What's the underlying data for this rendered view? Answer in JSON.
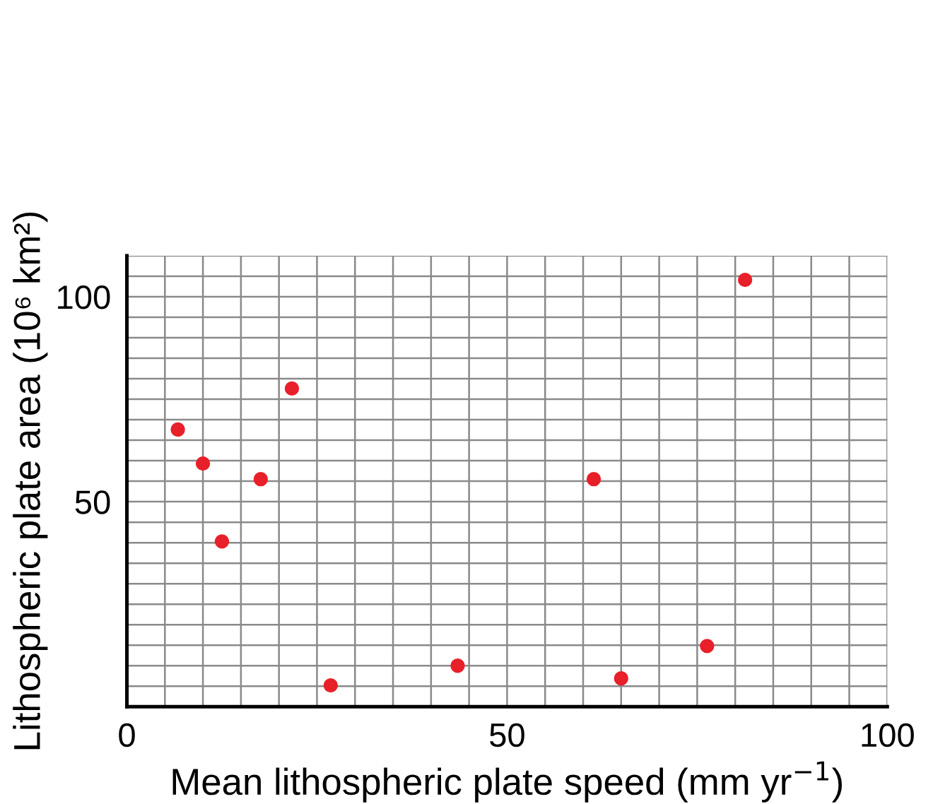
{
  "chart_data": {
    "type": "scatter",
    "xlabel": "Mean lithospheric plate speed (mm yr$^{−1}$)",
    "ylabel": "Lithospheric plate area (10⁶ km²)",
    "x": [
      6.7,
      10.0,
      12.5,
      17.6,
      21.7,
      26.8,
      43.5,
      61.4,
      65.0,
      76.3,
      81.3
    ],
    "series": [
      {
        "color": "#e8202a",
        "values": [
          67.6,
          59.3,
          40.3,
          55.5,
          77.6,
          5.2,
          10.0,
          55.5,
          6.9,
          14.8,
          104.1
        ]
      }
    ],
    "marker": "circle",
    "grid": true,
    "legend": false,
    "xlim": [
      0,
      100
    ],
    "ylim": [
      0,
      110
    ],
    "xticks": [
      0,
      {
        "value": 5,
        "label": null
      },
      {
        "value": 10,
        "label": null
      },
      {
        "value": 15,
        "label": null
      },
      {
        "value": 20,
        "label": null
      },
      {
        "value": 25,
        "label": null
      },
      {
        "value": 30,
        "label": null
      },
      {
        "value": 35,
        "label": null
      },
      {
        "value": 40,
        "label": null
      },
      {
        "value": 45,
        "label": null
      },
      50,
      {
        "value": 55,
        "label": null
      },
      {
        "value": 60,
        "label": null
      },
      {
        "value": 65,
        "label": null
      },
      {
        "value": 70,
        "label": null
      },
      {
        "value": 75,
        "label": null
      },
      {
        "value": 80,
        "label": null
      },
      {
        "value": 85,
        "label": null
      },
      {
        "value": 90,
        "label": null
      },
      {
        "value": 95,
        "label": null
      },
      100
    ],
    "yticks": [
      {
        "value": 0,
        "label": null
      },
      {
        "value": 5,
        "label": null
      },
      {
        "value": 10,
        "label": null
      },
      {
        "value": 15,
        "label": null
      },
      {
        "value": 20,
        "label": null
      },
      {
        "value": 25,
        "label": null
      },
      {
        "value": 30,
        "label": null
      },
      {
        "value": 35,
        "label": null
      },
      {
        "value": 40,
        "label": null
      },
      {
        "value": 45,
        "label": null
      },
      50,
      {
        "value": 55,
        "label": null
      },
      {
        "value": 60,
        "label": null
      },
      {
        "value": 65,
        "label": null
      },
      {
        "value": 70,
        "label": null
      },
      {
        "value": 75,
        "label": null
      },
      {
        "value": 80,
        "label": null
      },
      {
        "value": 85,
        "label": null
      },
      {
        "value": 90,
        "label": null
      },
      {
        "value": 95,
        "label": null
      },
      100,
      {
        "value": 105,
        "label": null
      },
      {
        "value": 110,
        "label": null
      }
    ]
  }
}
